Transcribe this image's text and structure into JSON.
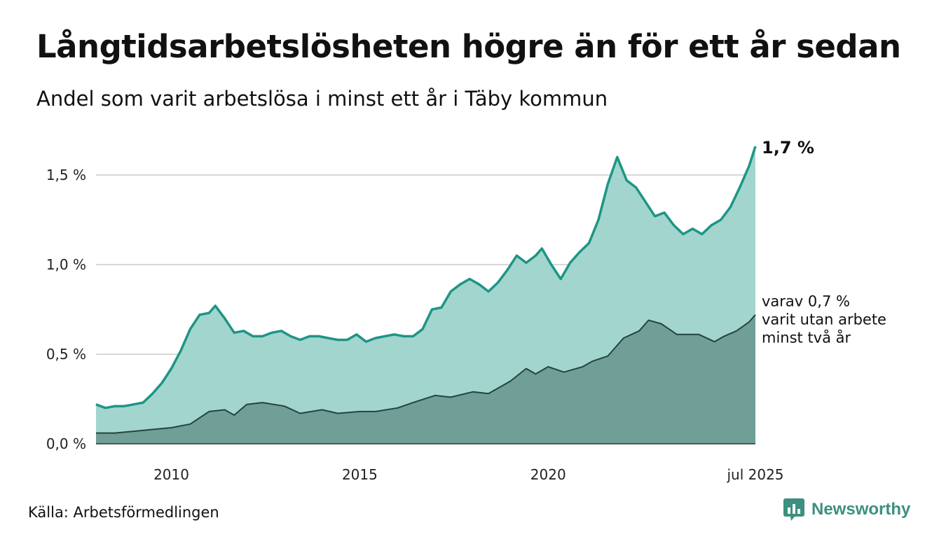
{
  "header": {
    "title": "Långtidsarbetslösheten högre än för ett år sedan",
    "subtitle": "Andel som varit arbetslösa i minst ett år i Täby kommun"
  },
  "footer": {
    "source": "Källa: Arbetsförmedlingen",
    "brand": "Newsworthy"
  },
  "colors": {
    "series1_area": "#a3d5cf",
    "series1_line": "#1e9585",
    "series2_area": "#6f9f96",
    "series2_line": "#24443e",
    "grid": "#d8d8d8",
    "brand": "#3d8f7f"
  },
  "chart_data": {
    "type": "area",
    "xlabel": "",
    "ylabel": "",
    "x_start": "2008-01",
    "x_end": "2025-07",
    "ylim": [
      0,
      1.75
    ],
    "y_ticks": [
      {
        "value": 0.0,
        "label": "0,0 %"
      },
      {
        "value": 0.5,
        "label": "0,5 %"
      },
      {
        "value": 1.0,
        "label": "1,0 %"
      },
      {
        "value": 1.5,
        "label": "1,5 %"
      }
    ],
    "x_ticks": [
      {
        "value": "2010-01",
        "label": "2010"
      },
      {
        "value": "2015-01",
        "label": "2015"
      },
      {
        "value": "2020-01",
        "label": "2020"
      },
      {
        "value": "2025-07",
        "label": "jul 2025"
      }
    ],
    "grid": "horizontal",
    "end_labels": [
      {
        "series": 0,
        "lines": [
          "1,7 %"
        ]
      },
      {
        "series": 1,
        "lines": [
          "varav 0,7 %",
          "varit utan arbete",
          "minst två år"
        ]
      }
    ],
    "series": [
      {
        "points": [
          [
            "2008-01",
            0.22
          ],
          [
            "2008-04",
            0.2
          ],
          [
            "2008-07",
            0.21
          ],
          [
            "2008-10",
            0.21
          ],
          [
            "2009-01",
            0.22
          ],
          [
            "2009-04",
            0.23
          ],
          [
            "2009-07",
            0.28
          ],
          [
            "2009-10",
            0.34
          ],
          [
            "2010-01",
            0.42
          ],
          [
            "2010-04",
            0.52
          ],
          [
            "2010-07",
            0.64
          ],
          [
            "2010-10",
            0.72
          ],
          [
            "2011-01",
            0.73
          ],
          [
            "2011-03",
            0.77
          ],
          [
            "2011-06",
            0.7
          ],
          [
            "2011-09",
            0.62
          ],
          [
            "2011-12",
            0.63
          ],
          [
            "2012-03",
            0.6
          ],
          [
            "2012-06",
            0.6
          ],
          [
            "2012-09",
            0.62
          ],
          [
            "2012-12",
            0.63
          ],
          [
            "2013-03",
            0.6
          ],
          [
            "2013-06",
            0.58
          ],
          [
            "2013-09",
            0.6
          ],
          [
            "2013-12",
            0.6
          ],
          [
            "2014-03",
            0.59
          ],
          [
            "2014-06",
            0.58
          ],
          [
            "2014-09",
            0.58
          ],
          [
            "2014-12",
            0.61
          ],
          [
            "2015-03",
            0.57
          ],
          [
            "2015-06",
            0.59
          ],
          [
            "2015-09",
            0.6
          ],
          [
            "2015-12",
            0.61
          ],
          [
            "2016-03",
            0.6
          ],
          [
            "2016-06",
            0.6
          ],
          [
            "2016-09",
            0.64
          ],
          [
            "2016-12",
            0.75
          ],
          [
            "2017-03",
            0.76
          ],
          [
            "2017-06",
            0.85
          ],
          [
            "2017-09",
            0.89
          ],
          [
            "2017-12",
            0.92
          ],
          [
            "2018-03",
            0.89
          ],
          [
            "2018-06",
            0.85
          ],
          [
            "2018-09",
            0.9
          ],
          [
            "2018-12",
            0.97
          ],
          [
            "2019-03",
            1.05
          ],
          [
            "2019-06",
            1.01
          ],
          [
            "2019-09",
            1.05
          ],
          [
            "2019-11",
            1.09
          ],
          [
            "2020-02",
            1.0
          ],
          [
            "2020-05",
            0.92
          ],
          [
            "2020-08",
            1.01
          ],
          [
            "2020-11",
            1.07
          ],
          [
            "2021-02",
            1.12
          ],
          [
            "2021-05",
            1.25
          ],
          [
            "2021-08",
            1.45
          ],
          [
            "2021-11",
            1.6
          ],
          [
            "2022-02",
            1.47
          ],
          [
            "2022-05",
            1.43
          ],
          [
            "2022-08",
            1.35
          ],
          [
            "2022-11",
            1.27
          ],
          [
            "2023-02",
            1.29
          ],
          [
            "2023-05",
            1.22
          ],
          [
            "2023-08",
            1.17
          ],
          [
            "2023-11",
            1.2
          ],
          [
            "2024-02",
            1.17
          ],
          [
            "2024-05",
            1.22
          ],
          [
            "2024-08",
            1.25
          ],
          [
            "2024-11",
            1.32
          ],
          [
            "2025-02",
            1.43
          ],
          [
            "2025-05",
            1.55
          ],
          [
            "2025-07",
            1.66
          ]
        ]
      },
      {
        "points": [
          [
            "2008-01",
            0.06
          ],
          [
            "2008-07",
            0.06
          ],
          [
            "2009-01",
            0.07
          ],
          [
            "2009-07",
            0.08
          ],
          [
            "2010-01",
            0.09
          ],
          [
            "2010-07",
            0.11
          ],
          [
            "2011-01",
            0.18
          ],
          [
            "2011-06",
            0.19
          ],
          [
            "2011-09",
            0.16
          ],
          [
            "2012-01",
            0.22
          ],
          [
            "2012-06",
            0.23
          ],
          [
            "2013-01",
            0.21
          ],
          [
            "2013-06",
            0.17
          ],
          [
            "2014-01",
            0.19
          ],
          [
            "2014-06",
            0.17
          ],
          [
            "2015-01",
            0.18
          ],
          [
            "2015-06",
            0.18
          ],
          [
            "2016-01",
            0.2
          ],
          [
            "2016-06",
            0.23
          ],
          [
            "2017-01",
            0.27
          ],
          [
            "2017-06",
            0.26
          ],
          [
            "2018-01",
            0.29
          ],
          [
            "2018-06",
            0.28
          ],
          [
            "2019-01",
            0.35
          ],
          [
            "2019-06",
            0.42
          ],
          [
            "2019-09",
            0.39
          ],
          [
            "2020-01",
            0.43
          ],
          [
            "2020-06",
            0.4
          ],
          [
            "2020-12",
            0.43
          ],
          [
            "2021-03",
            0.46
          ],
          [
            "2021-08",
            0.49
          ],
          [
            "2022-01",
            0.59
          ],
          [
            "2022-06",
            0.63
          ],
          [
            "2022-09",
            0.69
          ],
          [
            "2023-01",
            0.67
          ],
          [
            "2023-06",
            0.61
          ],
          [
            "2024-01",
            0.61
          ],
          [
            "2024-06",
            0.57
          ],
          [
            "2024-09",
            0.6
          ],
          [
            "2025-01",
            0.63
          ],
          [
            "2025-05",
            0.68
          ],
          [
            "2025-07",
            0.72
          ]
        ]
      }
    ]
  }
}
